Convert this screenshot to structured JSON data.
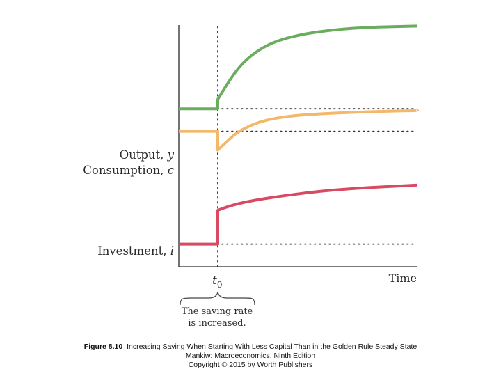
{
  "chart_data": {
    "type": "line",
    "xlabel": "Time",
    "event_marker": {
      "label": "t",
      "subscript": "0"
    },
    "annotation": {
      "line1": "The saving rate",
      "line2": "is increased."
    },
    "series": [
      {
        "name": "Output, y",
        "label_text": "Output, ",
        "label_symbol": "y",
        "color": "#6aad5e",
        "initial_level": 0.42,
        "values_after": [
          [
            0.0,
            0.445
          ],
          [
            0.04,
            0.48
          ],
          [
            0.09,
            0.52
          ],
          [
            0.15,
            0.555
          ],
          [
            0.23,
            0.585
          ],
          [
            0.32,
            0.605
          ],
          [
            0.44,
            0.62
          ],
          [
            0.58,
            0.63
          ],
          [
            0.75,
            0.637
          ],
          [
            1.0,
            0.64
          ]
        ]
      },
      {
        "name": "Consumption, c",
        "label_text": "Consumption, ",
        "label_symbol": "c",
        "color": "#f3b86a",
        "initial_level": 0.36,
        "values_after": [
          [
            0.0,
            0.31
          ],
          [
            0.04,
            0.33
          ],
          [
            0.09,
            0.355
          ],
          [
            0.16,
            0.375
          ],
          [
            0.24,
            0.39
          ],
          [
            0.35,
            0.4
          ],
          [
            0.48,
            0.406
          ],
          [
            0.65,
            0.41
          ],
          [
            0.82,
            0.413
          ],
          [
            1.0,
            0.415
          ]
        ]
      },
      {
        "name": "Investment, i",
        "label_text": "Investment, ",
        "label_symbol": "i",
        "color": "#d84a62",
        "initial_level": 0.06,
        "values_after": [
          [
            0.0,
            0.15
          ],
          [
            0.05,
            0.16
          ],
          [
            0.12,
            0.17
          ],
          [
            0.22,
            0.18
          ],
          [
            0.35,
            0.19
          ],
          [
            0.5,
            0.2
          ],
          [
            0.68,
            0.208
          ],
          [
            0.85,
            0.213
          ],
          [
            1.0,
            0.217
          ]
        ]
      }
    ]
  },
  "caption": {
    "figure_label": "Figure 8.10",
    "title": "Increasing Saving When Starting With Less Capital Than in the Golden Rule Steady State",
    "line2": "Mankiw: Macroeconomics, Ninth Edition",
    "line3": "Copyright © 2015 by Worth Publishers"
  }
}
